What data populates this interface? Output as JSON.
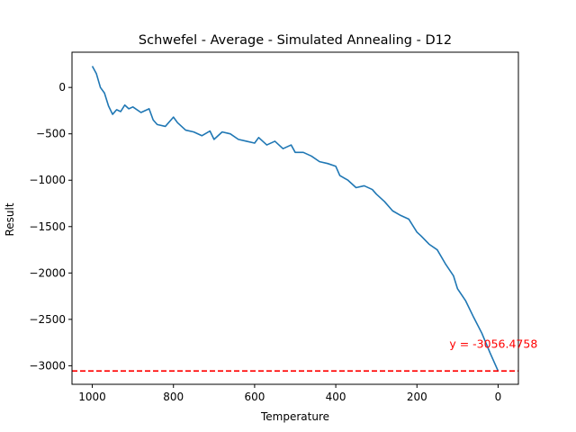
{
  "chart_data": {
    "type": "line",
    "title": "Schwefel - Average - Simulated Annealing - D12",
    "xlabel": "Temperature",
    "ylabel": "Result",
    "xlim": [
      1050,
      -50
    ],
    "ylim": [
      -3200,
      380
    ],
    "x_inverted": true,
    "grid": false,
    "x_ticks": [
      1000,
      800,
      600,
      400,
      200,
      0
    ],
    "x_tick_labels": [
      "1000",
      "800",
      "600",
      "400",
      "200",
      "0"
    ],
    "y_ticks": [
      0,
      -500,
      -1000,
      -1500,
      -2000,
      -2500,
      -3000
    ],
    "y_tick_labels": [
      "0",
      "−500",
      "−1000",
      "−1500",
      "−2000",
      "−2500",
      "−3000"
    ],
    "series": [
      {
        "color": "#1f77b4",
        "x": [
          1000,
          990,
          980,
          970,
          960,
          950,
          940,
          930,
          920,
          910,
          900,
          880,
          860,
          850,
          840,
          820,
          800,
          790,
          770,
          750,
          730,
          710,
          700,
          680,
          660,
          640,
          620,
          600,
          590,
          570,
          550,
          530,
          510,
          500,
          480,
          460,
          440,
          420,
          400,
          390,
          370,
          350,
          330,
          310,
          300,
          280,
          260,
          240,
          220,
          200,
          190,
          170,
          150,
          130,
          110,
          100,
          80,
          60,
          40,
          20,
          0
        ],
        "y": [
          230,
          150,
          0,
          -60,
          -200,
          -290,
          -240,
          -260,
          -190,
          -230,
          -210,
          -270,
          -230,
          -350,
          -400,
          -420,
          -320,
          -380,
          -460,
          -480,
          -520,
          -470,
          -560,
          -480,
          -500,
          -560,
          -580,
          -600,
          -540,
          -620,
          -580,
          -660,
          -620,
          -700,
          -700,
          -740,
          -800,
          -820,
          -850,
          -950,
          -1000,
          -1080,
          -1060,
          -1100,
          -1150,
          -1230,
          -1330,
          -1380,
          -1420,
          -1560,
          -1600,
          -1690,
          -1750,
          -1900,
          -2030,
          -2170,
          -2300,
          -2480,
          -2650,
          -2860,
          -3056
        ]
      }
    ],
    "reference_line": {
      "y": -3056.4758,
      "color": "#ff0000",
      "style": "dashed"
    },
    "annotation": {
      "text": "y = -3056.4758",
      "x": 120,
      "y": -2770,
      "color": "#ff0000"
    }
  }
}
